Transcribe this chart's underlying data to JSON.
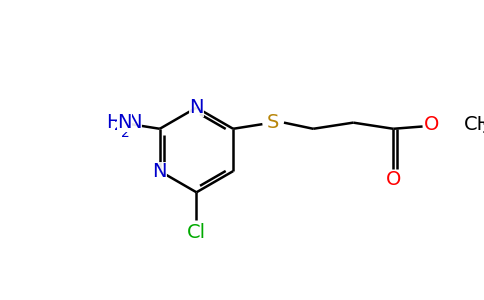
{
  "background_color": "#ffffff",
  "atom_colors": {
    "N": "#0000cc",
    "S": "#b8860b",
    "O": "#ff0000",
    "Cl": "#00aa00",
    "C": "#000000",
    "H": "#000000"
  },
  "bond_color": "#000000",
  "bond_width": 1.8,
  "font_size_atoms": 14,
  "fig_width": 4.84,
  "fig_height": 3.0,
  "dpi": 100
}
